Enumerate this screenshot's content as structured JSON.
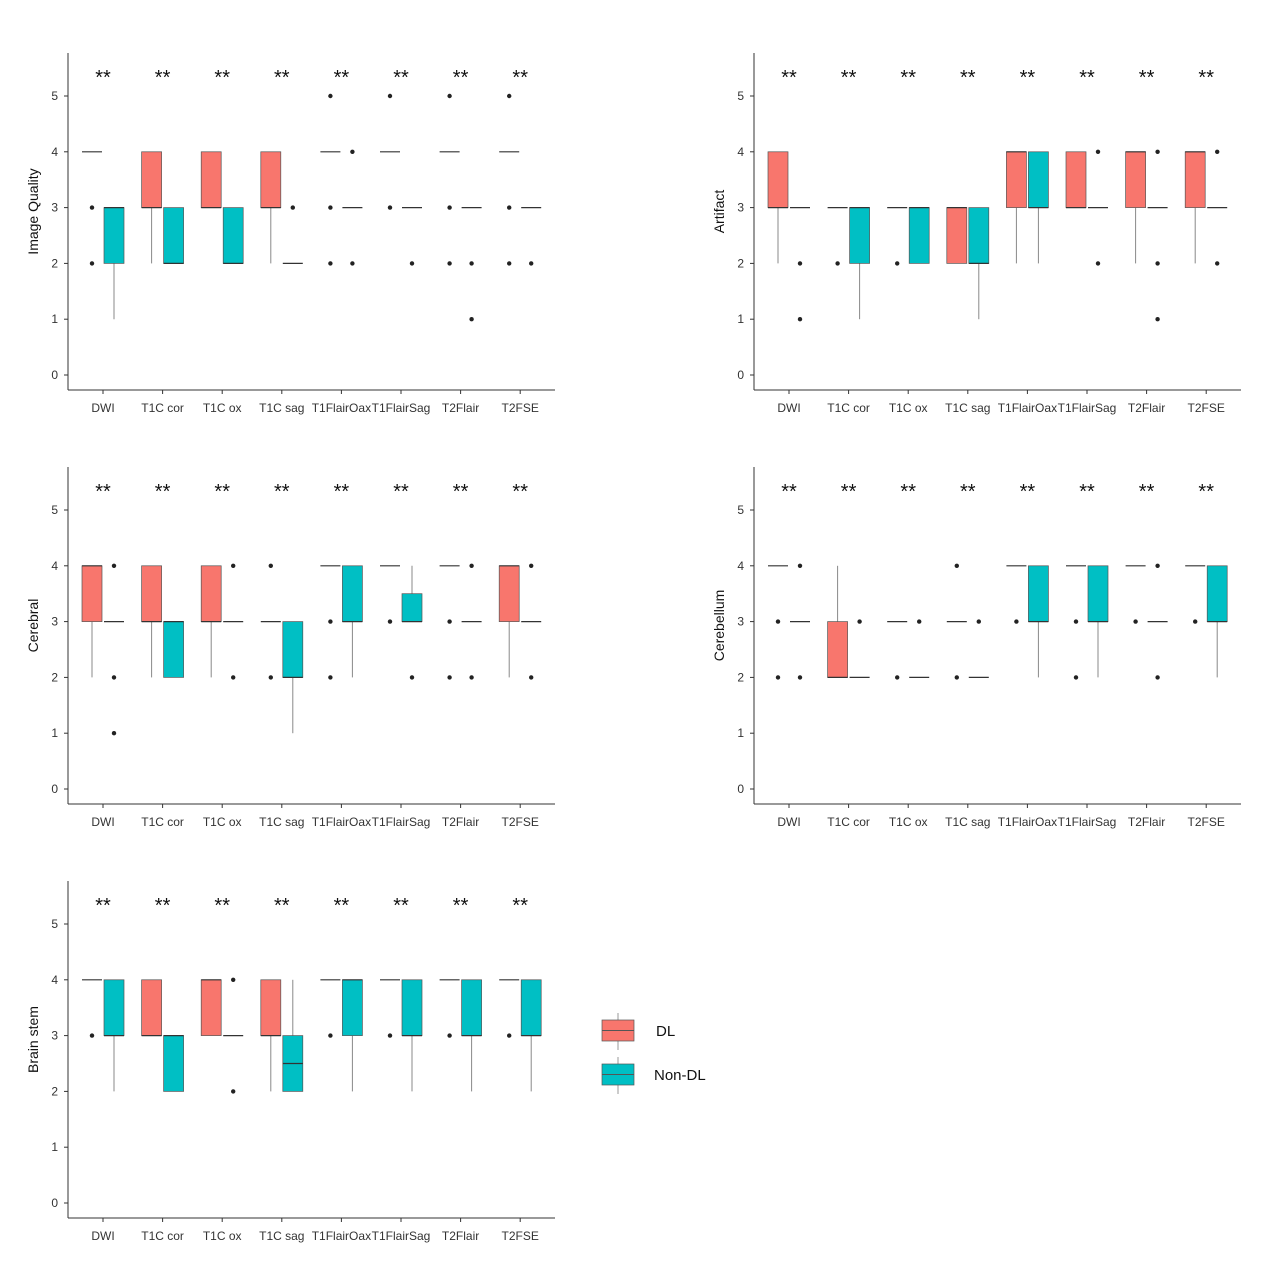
{
  "chart_data": [
    {
      "type": "boxplot",
      "ylabel": "Image Quality",
      "categories": [
        "DWI",
        "T1C cor",
        "T1C ox",
        "T1C sag",
        "T1FlairOax",
        "T1FlairSag",
        "T2Flair",
        "T2FSE"
      ],
      "yticks": [
        "0",
        "1",
        "2",
        "3",
        "4",
        "5"
      ],
      "ylim": [
        -0.4,
        5.8
      ],
      "significance": [
        "**",
        "**",
        "**",
        "**",
        "**",
        "**",
        "**",
        "**"
      ],
      "series": [
        {
          "name": "DL",
          "boxes": [
            {
              "q1": 4,
              "median": 4,
              "q3": 4,
              "lo": 4,
              "hi": 4,
              "outliers": [
                3,
                2
              ]
            },
            {
              "q1": 3,
              "median": 3,
              "q3": 4,
              "lo": 2,
              "hi": 4,
              "outliers": []
            },
            {
              "q1": 3,
              "median": 3,
              "q3": 4,
              "lo": 3,
              "hi": 4,
              "outliers": []
            },
            {
              "q1": 3,
              "median": 3,
              "q3": 4,
              "lo": 2,
              "hi": 4,
              "outliers": []
            },
            {
              "q1": 4,
              "median": 4,
              "q3": 4,
              "lo": 4,
              "hi": 4,
              "outliers": [
                5,
                3,
                2
              ]
            },
            {
              "q1": 4,
              "median": 4,
              "q3": 4,
              "lo": 4,
              "hi": 4,
              "outliers": [
                5,
                3
              ]
            },
            {
              "q1": 4,
              "median": 4,
              "q3": 4,
              "lo": 4,
              "hi": 4,
              "outliers": [
                5,
                3,
                2
              ]
            },
            {
              "q1": 4,
              "median": 4,
              "q3": 4,
              "lo": 4,
              "hi": 4,
              "outliers": [
                5,
                3,
                2
              ]
            }
          ]
        },
        {
          "name": "Non-DL",
          "boxes": [
            {
              "q1": 2,
              "median": 3,
              "q3": 3,
              "lo": 1,
              "hi": 3,
              "outliers": []
            },
            {
              "q1": 2,
              "median": 2,
              "q3": 3,
              "lo": 2,
              "hi": 3,
              "outliers": []
            },
            {
              "q1": 2,
              "median": 2,
              "q3": 3,
              "lo": 2,
              "hi": 3,
              "outliers": []
            },
            {
              "q1": 2,
              "median": 2,
              "q3": 2,
              "lo": 2,
              "hi": 2,
              "outliers": [
                3
              ]
            },
            {
              "q1": 3,
              "median": 3,
              "q3": 3,
              "lo": 3,
              "hi": 3,
              "outliers": [
                4,
                2
              ]
            },
            {
              "q1": 3,
              "median": 3,
              "q3": 3,
              "lo": 3,
              "hi": 3,
              "outliers": [
                2
              ]
            },
            {
              "q1": 3,
              "median": 3,
              "q3": 3,
              "lo": 3,
              "hi": 3,
              "outliers": [
                2,
                1
              ]
            },
            {
              "q1": 3,
              "median": 3,
              "q3": 3,
              "lo": 3,
              "hi": 3,
              "outliers": [
                2
              ]
            }
          ]
        }
      ]
    },
    {
      "type": "boxplot",
      "ylabel": "Artifact",
      "categories": [
        "DWI",
        "T1C cor",
        "T1C ox",
        "T1C sag",
        "T1FlairOax",
        "T1FlairSag",
        "T2Flair",
        "T2FSE"
      ],
      "yticks": [
        "0",
        "1",
        "2",
        "3",
        "4",
        "5"
      ],
      "ylim": [
        -0.4,
        5.8
      ],
      "significance": [
        "**",
        "**",
        "**",
        "**",
        "**",
        "**",
        "**",
        "**"
      ],
      "series": [
        {
          "name": "DL",
          "boxes": [
            {
              "q1": 3,
              "median": 3,
              "q3": 4,
              "lo": 2,
              "hi": 4,
              "outliers": []
            },
            {
              "q1": 3,
              "median": 3,
              "q3": 3,
              "lo": 3,
              "hi": 3,
              "outliers": [
                2
              ]
            },
            {
              "q1": 3,
              "median": 3,
              "q3": 3,
              "lo": 3,
              "hi": 3,
              "outliers": [
                2
              ]
            },
            {
              "q1": 2,
              "median": 3,
              "q3": 3,
              "lo": 2,
              "hi": 3,
              "outliers": []
            },
            {
              "q1": 3,
              "median": 4,
              "q3": 4,
              "lo": 2,
              "hi": 4,
              "outliers": []
            },
            {
              "q1": 3,
              "median": 3,
              "q3": 4,
              "lo": 3,
              "hi": 4,
              "outliers": []
            },
            {
              "q1": 3,
              "median": 4,
              "q3": 4,
              "lo": 2,
              "hi": 4,
              "outliers": []
            },
            {
              "q1": 3,
              "median": 4,
              "q3": 4,
              "lo": 2,
              "hi": 4,
              "outliers": []
            }
          ]
        },
        {
          "name": "Non-DL",
          "boxes": [
            {
              "q1": 3,
              "median": 3,
              "q3": 3,
              "lo": 3,
              "hi": 3,
              "outliers": [
                2,
                1
              ]
            },
            {
              "q1": 2,
              "median": 3,
              "q3": 3,
              "lo": 1,
              "hi": 3,
              "outliers": []
            },
            {
              "q1": 2,
              "median": 3,
              "q3": 3,
              "lo": 2,
              "hi": 3,
              "outliers": []
            },
            {
              "q1": 2,
              "median": 2,
              "q3": 3,
              "lo": 1,
              "hi": 3,
              "outliers": []
            },
            {
              "q1": 3,
              "median": 3,
              "q3": 4,
              "lo": 2,
              "hi": 4,
              "outliers": []
            },
            {
              "q1": 3,
              "median": 3,
              "q3": 3,
              "lo": 3,
              "hi": 3,
              "outliers": [
                4,
                2
              ]
            },
            {
              "q1": 3,
              "median": 3,
              "q3": 3,
              "lo": 3,
              "hi": 3,
              "outliers": [
                4,
                2,
                1
              ]
            },
            {
              "q1": 3,
              "median": 3,
              "q3": 3,
              "lo": 3,
              "hi": 3,
              "outliers": [
                4,
                2
              ]
            }
          ]
        }
      ]
    },
    {
      "type": "boxplot",
      "ylabel": "Cerebral",
      "categories": [
        "DWI",
        "T1C cor",
        "T1C ox",
        "T1C sag",
        "T1FlairOax",
        "T1FlairSag",
        "T2Flair",
        "T2FSE"
      ],
      "yticks": [
        "0",
        "1",
        "2",
        "3",
        "4",
        "5"
      ],
      "ylim": [
        -0.4,
        5.8
      ],
      "significance": [
        "**",
        "**",
        "**",
        "**",
        "**",
        "**",
        "**",
        "**"
      ],
      "series": [
        {
          "name": "DL",
          "boxes": [
            {
              "q1": 3,
              "median": 4,
              "q3": 4,
              "lo": 2,
              "hi": 4,
              "outliers": []
            },
            {
              "q1": 3,
              "median": 3,
              "q3": 4,
              "lo": 2,
              "hi": 4,
              "outliers": []
            },
            {
              "q1": 3,
              "median": 3,
              "q3": 4,
              "lo": 2,
              "hi": 4,
              "outliers": []
            },
            {
              "q1": 3,
              "median": 3,
              "q3": 3,
              "lo": 3,
              "hi": 3,
              "outliers": [
                4,
                2
              ]
            },
            {
              "q1": 4,
              "median": 4,
              "q3": 4,
              "lo": 4,
              "hi": 4,
              "outliers": [
                3,
                2
              ]
            },
            {
              "q1": 4,
              "median": 4,
              "q3": 4,
              "lo": 4,
              "hi": 4,
              "outliers": [
                3
              ]
            },
            {
              "q1": 4,
              "median": 4,
              "q3": 4,
              "lo": 4,
              "hi": 4,
              "outliers": [
                3,
                2
              ]
            },
            {
              "q1": 3,
              "median": 4,
              "q3": 4,
              "lo": 2,
              "hi": 4,
              "outliers": []
            }
          ]
        },
        {
          "name": "Non-DL",
          "boxes": [
            {
              "q1": 3,
              "median": 3,
              "q3": 3,
              "lo": 3,
              "hi": 3,
              "outliers": [
                4,
                2,
                1
              ]
            },
            {
              "q1": 2,
              "median": 3,
              "q3": 3,
              "lo": 2,
              "hi": 3,
              "outliers": []
            },
            {
              "q1": 3,
              "median": 3,
              "q3": 3,
              "lo": 3,
              "hi": 3,
              "outliers": [
                4,
                2
              ]
            },
            {
              "q1": 2,
              "median": 2,
              "q3": 3,
              "lo": 1,
              "hi": 3,
              "outliers": []
            },
            {
              "q1": 3,
              "median": 3,
              "q3": 4,
              "lo": 2,
              "hi": 4,
              "outliers": []
            },
            {
              "q1": 3,
              "median": 3,
              "q3": 3.5,
              "lo": 3,
              "hi": 4,
              "outliers": [
                2
              ]
            },
            {
              "q1": 3,
              "median": 3,
              "q3": 3,
              "lo": 3,
              "hi": 3,
              "outliers": [
                4,
                2
              ]
            },
            {
              "q1": 3,
              "median": 3,
              "q3": 3,
              "lo": 3,
              "hi": 3,
              "outliers": [
                4,
                2
              ]
            }
          ]
        }
      ]
    },
    {
      "type": "boxplot",
      "ylabel": "Cerebellum",
      "categories": [
        "DWI",
        "T1C cor",
        "T1C ox",
        "T1C sag",
        "T1FlairOax",
        "T1FlairSag",
        "T2Flair",
        "T2FSE"
      ],
      "yticks": [
        "0",
        "1",
        "2",
        "3",
        "4",
        "5"
      ],
      "ylim": [
        -0.4,
        5.8
      ],
      "significance": [
        "**",
        "**",
        "**",
        "**",
        "**",
        "**",
        "**",
        "**"
      ],
      "series": [
        {
          "name": "DL",
          "boxes": [
            {
              "q1": 4,
              "median": 4,
              "q3": 4,
              "lo": 4,
              "hi": 4,
              "outliers": [
                3,
                2
              ]
            },
            {
              "q1": 2,
              "median": 2,
              "q3": 3,
              "lo": 2,
              "hi": 4,
              "outliers": []
            },
            {
              "q1": 3,
              "median": 3,
              "q3": 3,
              "lo": 3,
              "hi": 3,
              "outliers": [
                2
              ]
            },
            {
              "q1": 3,
              "median": 3,
              "q3": 3,
              "lo": 3,
              "hi": 3,
              "outliers": [
                4,
                2
              ]
            },
            {
              "q1": 4,
              "median": 4,
              "q3": 4,
              "lo": 4,
              "hi": 4,
              "outliers": [
                3
              ]
            },
            {
              "q1": 4,
              "median": 4,
              "q3": 4,
              "lo": 4,
              "hi": 4,
              "outliers": [
                3,
                2
              ]
            },
            {
              "q1": 4,
              "median": 4,
              "q3": 4,
              "lo": 4,
              "hi": 4,
              "outliers": [
                3
              ]
            },
            {
              "q1": 4,
              "median": 4,
              "q3": 4,
              "lo": 4,
              "hi": 4,
              "outliers": [
                3
              ]
            }
          ]
        },
        {
          "name": "Non-DL",
          "boxes": [
            {
              "q1": 3,
              "median": 3,
              "q3": 3,
              "lo": 3,
              "hi": 3,
              "outliers": [
                4,
                2
              ]
            },
            {
              "q1": 2,
              "median": 2,
              "q3": 2,
              "lo": 2,
              "hi": 2,
              "outliers": [
                3
              ]
            },
            {
              "q1": 2,
              "median": 2,
              "q3": 2,
              "lo": 2,
              "hi": 2,
              "outliers": [
                3
              ]
            },
            {
              "q1": 2,
              "median": 2,
              "q3": 2,
              "lo": 2,
              "hi": 2,
              "outliers": [
                3
              ]
            },
            {
              "q1": 3,
              "median": 3,
              "q3": 4,
              "lo": 2,
              "hi": 4,
              "outliers": []
            },
            {
              "q1": 3,
              "median": 3,
              "q3": 4,
              "lo": 2,
              "hi": 4,
              "outliers": []
            },
            {
              "q1": 3,
              "median": 3,
              "q3": 3,
              "lo": 3,
              "hi": 3,
              "outliers": [
                4,
                2
              ]
            },
            {
              "q1": 3,
              "median": 3,
              "q3": 4,
              "lo": 2,
              "hi": 4,
              "outliers": []
            }
          ]
        }
      ]
    },
    {
      "type": "boxplot",
      "ylabel": "Brain stem",
      "categories": [
        "DWI",
        "T1C cor",
        "T1C ox",
        "T1C sag",
        "T1FlairOax",
        "T1FlairSag",
        "T2Flair",
        "T2FSE"
      ],
      "yticks": [
        "0",
        "1",
        "2",
        "3",
        "4",
        "5"
      ],
      "ylim": [
        -0.4,
        5.8
      ],
      "significance": [
        "**",
        "**",
        "**",
        "**",
        "**",
        "**",
        "**",
        "**"
      ],
      "series": [
        {
          "name": "DL",
          "boxes": [
            {
              "q1": 4,
              "median": 4,
              "q3": 4,
              "lo": 4,
              "hi": 4,
              "outliers": [
                3
              ]
            },
            {
              "q1": 3,
              "median": 3,
              "q3": 4,
              "lo": 3,
              "hi": 4,
              "outliers": []
            },
            {
              "q1": 3,
              "median": 4,
              "q3": 4,
              "lo": 3,
              "hi": 4,
              "outliers": []
            },
            {
              "q1": 3,
              "median": 3,
              "q3": 4,
              "lo": 2,
              "hi": 4,
              "outliers": []
            },
            {
              "q1": 4,
              "median": 4,
              "q3": 4,
              "lo": 4,
              "hi": 4,
              "outliers": [
                3
              ]
            },
            {
              "q1": 4,
              "median": 4,
              "q3": 4,
              "lo": 4,
              "hi": 4,
              "outliers": [
                3
              ]
            },
            {
              "q1": 4,
              "median": 4,
              "q3": 4,
              "lo": 4,
              "hi": 4,
              "outliers": [
                3
              ]
            },
            {
              "q1": 4,
              "median": 4,
              "q3": 4,
              "lo": 4,
              "hi": 4,
              "outliers": [
                3
              ]
            }
          ]
        },
        {
          "name": "Non-DL",
          "boxes": [
            {
              "q1": 3,
              "median": 3,
              "q3": 4,
              "lo": 2,
              "hi": 4,
              "outliers": []
            },
            {
              "q1": 2,
              "median": 3,
              "q3": 3,
              "lo": 2,
              "hi": 3,
              "outliers": []
            },
            {
              "q1": 3,
              "median": 3,
              "q3": 3,
              "lo": 3,
              "hi": 3,
              "outliers": [
                4,
                2
              ]
            },
            {
              "q1": 2,
              "median": 2.5,
              "q3": 3,
              "lo": 2,
              "hi": 4,
              "outliers": []
            },
            {
              "q1": 3,
              "median": 4,
              "q3": 4,
              "lo": 2,
              "hi": 4,
              "outliers": []
            },
            {
              "q1": 3,
              "median": 3,
              "q3": 4,
              "lo": 2,
              "hi": 4,
              "outliers": []
            },
            {
              "q1": 3,
              "median": 3,
              "q3": 4,
              "lo": 2,
              "hi": 4,
              "outliers": []
            },
            {
              "q1": 3,
              "median": 3,
              "q3": 4,
              "lo": 2,
              "hi": 4,
              "outliers": []
            }
          ]
        }
      ]
    }
  ],
  "legend": {
    "items": [
      {
        "label": "DL",
        "color": "#F8766D"
      },
      {
        "label": "Non-DL",
        "color": "#00BFC4"
      }
    ]
  }
}
